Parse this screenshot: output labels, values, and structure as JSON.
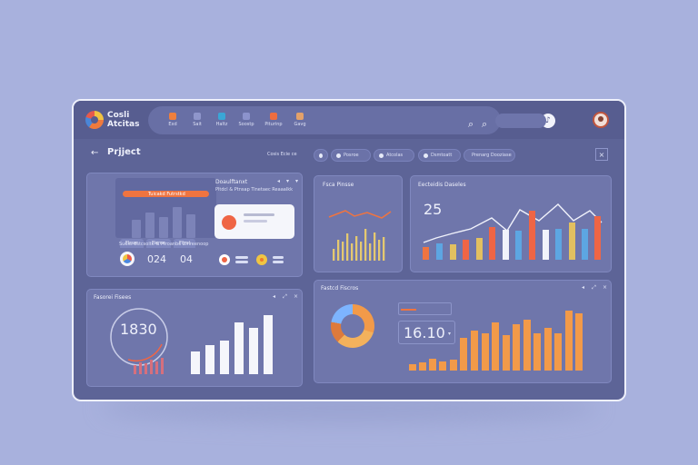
{
  "brand": {
    "line1": "Cosli",
    "line2": "Atcitas"
  },
  "topnav": {
    "items": [
      {
        "label": "Exd",
        "color": "#ef7f3d"
      },
      {
        "label": "Sait",
        "color": "#8f96cb"
      },
      {
        "label": "Haltz",
        "color": "#3aa6d6"
      },
      {
        "label": "Soostp",
        "color": "#8c93cc"
      },
      {
        "label": "Piturinp",
        "color": "#ef6d3f"
      },
      {
        "label": "Gavg",
        "color": "#e3a16a"
      }
    ],
    "search_icon": "search-icon",
    "filter_icon": "search-icon"
  },
  "header": {
    "title": "Prjject",
    "subtitle": "Cosis Ecie ce",
    "chips": [
      "Posroe",
      "Atcolas",
      "Dsmtoatt",
      "Prenarg Dooziase"
    ]
  },
  "sidebar": [
    "grid-icon",
    "pen-icon",
    "list-icon",
    "circle-icon",
    "refresh-icon"
  ],
  "left_card": {
    "tabs": [
      "Flrsar",
      "Fieme",
      "Fitrst"
    ],
    "banner": "Tuicakd Futrstkd",
    "caption": "Suoss Estcsolte & Ptroanbo Zinreenoop",
    "numbers": [
      "024",
      "04"
    ],
    "right_title": "Doaulftanxt",
    "right_sub": "Pltdcl & Ptnsap Tinetaec Reaaalkk"
  },
  "mini_card": {
    "title": "Fsca Pinsse"
  },
  "top_right_card": {
    "value": "25",
    "title": "Eecteidis Daseles"
  },
  "bottom_left_card": {
    "title": "Fasorei Fisees",
    "gauge_value": "1830"
  },
  "bottom_right_card": {
    "title": "Fastcd Fiscros",
    "value": "16.10"
  },
  "colors": {
    "accent": "#ef7440",
    "blue": "#5da6e2",
    "yellow": "#e2c060",
    "orange": "#f1974a"
  }
}
